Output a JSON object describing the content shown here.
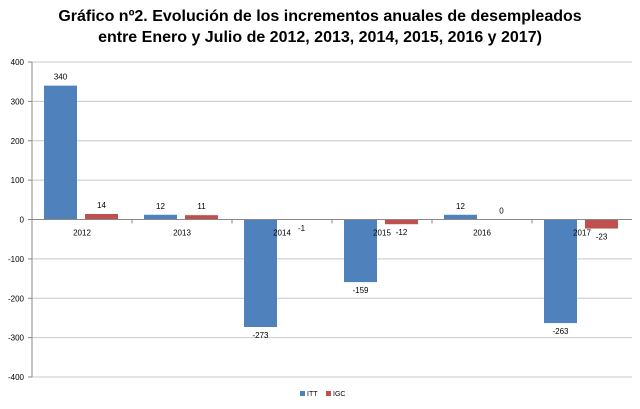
{
  "chart_data": {
    "type": "bar",
    "title_lines": [
      "Gráfico nº2. Evolución de los incrementos anuales de desempleados",
      "entre Enero y Julio de 2012, 2013, 2014, 2015, 2016 y 2017)"
    ],
    "categories": [
      "2012",
      "2013",
      "2014",
      "2015",
      "2016",
      "2017"
    ],
    "series": [
      {
        "name": "ITT",
        "color": "#4F81BD",
        "values": [
          340,
          12,
          -273,
          -159,
          12,
          -263
        ]
      },
      {
        "name": "IGC",
        "color": "#C0504D",
        "values": [
          14,
          11,
          -1,
          -12,
          0,
          -23
        ]
      }
    ],
    "ylim": [
      -400,
      400
    ],
    "yticks": [
      -400,
      -300,
      -200,
      -100,
      0,
      100,
      200,
      300,
      400
    ],
    "grid": true,
    "legend_position": "bottom"
  }
}
